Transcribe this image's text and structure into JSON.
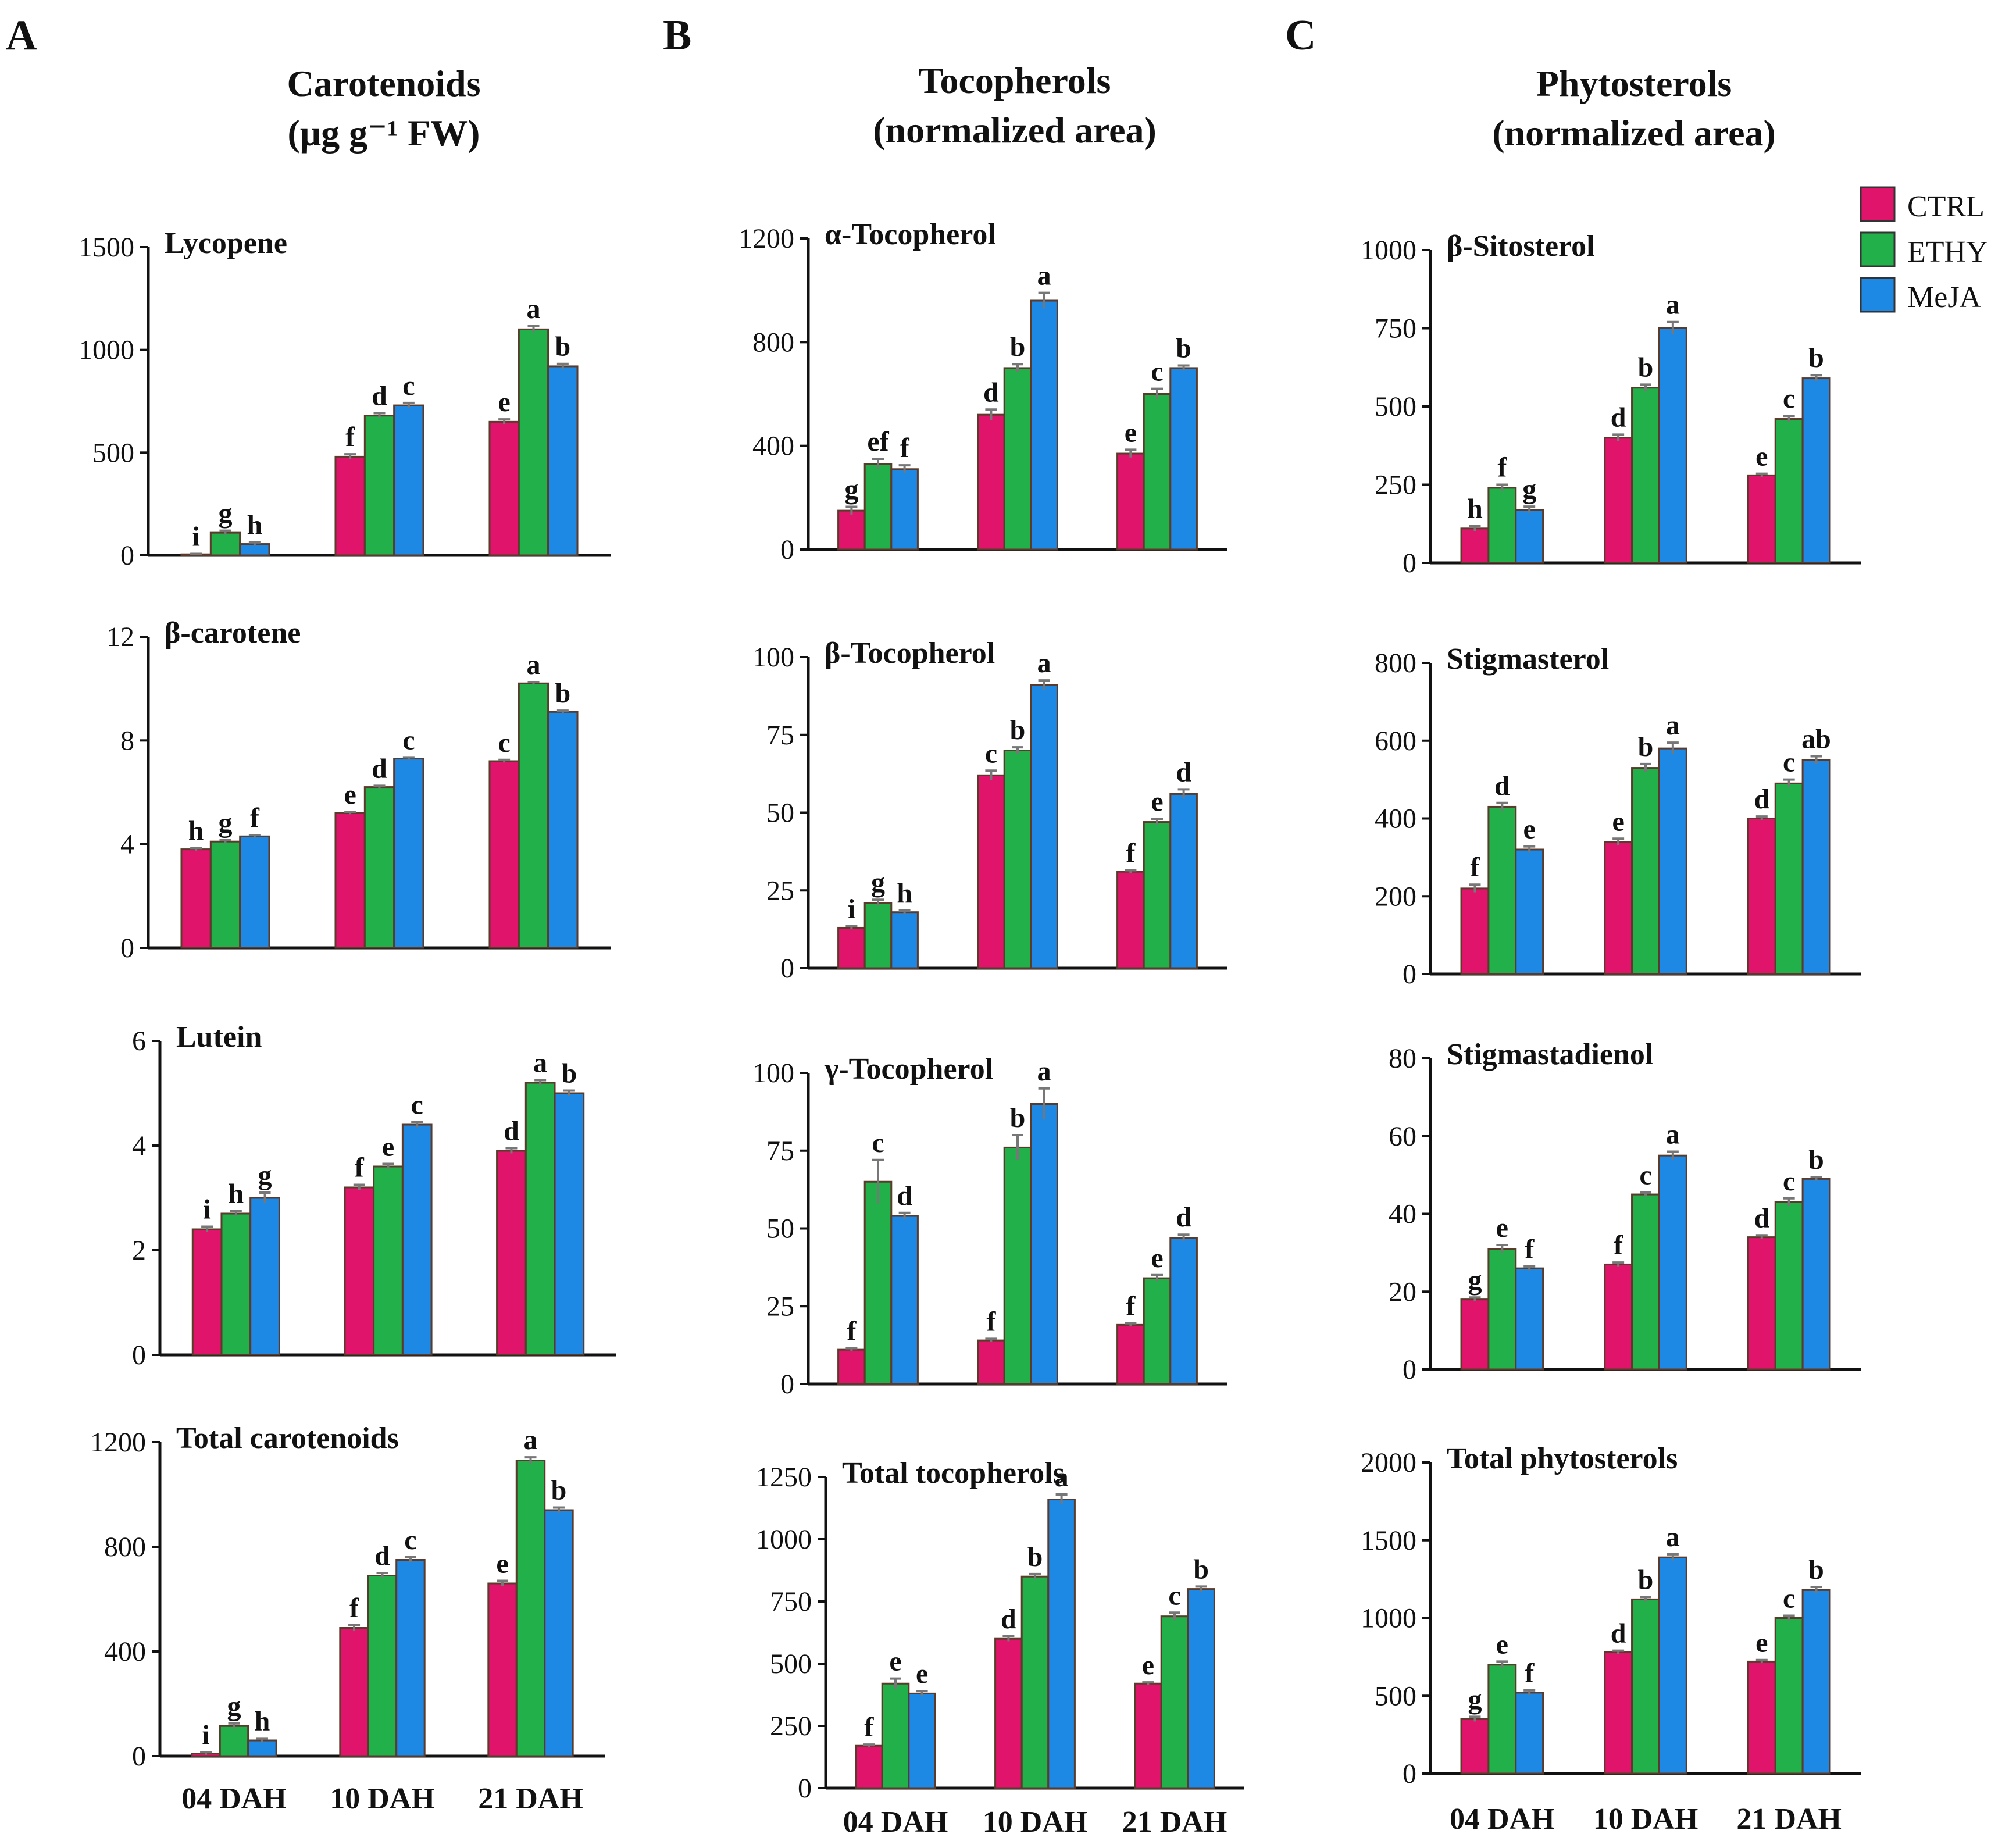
{
  "colors": {
    "CTRL": "#e0146a",
    "ETHY": "#22b04a",
    "MeJA": "#1e88e5"
  },
  "legend": [
    "CTRL",
    "ETHY",
    "MeJA"
  ],
  "categories": [
    "04 DAH",
    "10 DAH",
    "21 DAH"
  ],
  "columns": [
    {
      "letter": "A",
      "title_line1": "Carotenoids",
      "title_line2": "(μg g⁻¹ FW)"
    },
    {
      "letter": "B",
      "title_line1": "Tocopherols",
      "title_line2": "(normalized area)"
    },
    {
      "letter": "C",
      "title_line1": "Phytosterols",
      "title_line2": "(normalized area)"
    }
  ],
  "chart_data": [
    {
      "id": "lycopene",
      "type": "bar",
      "title": "Lycopene",
      "ylim": [
        0,
        1500
      ],
      "yticks": [
        0,
        500,
        1000,
        1500
      ],
      "categories": [
        "04 DAH",
        "10 DAH",
        "21 DAH"
      ],
      "series": [
        {
          "name": "CTRL",
          "values": [
            5,
            480,
            650
          ],
          "errors": [
            2,
            12,
            12
          ],
          "letters": [
            "i",
            "f",
            "e"
          ]
        },
        {
          "name": "ETHY",
          "values": [
            110,
            680,
            1100
          ],
          "errors": [
            10,
            12,
            15
          ],
          "letters": [
            "g",
            "d",
            "a"
          ]
        },
        {
          "name": "MeJA",
          "values": [
            55,
            730,
            920
          ],
          "errors": [
            8,
            12,
            12
          ],
          "letters": [
            "h",
            "c",
            "b"
          ]
        }
      ]
    },
    {
      "id": "beta-carotene",
      "type": "bar",
      "title": "β-carotene",
      "ylim": [
        0,
        12
      ],
      "yticks": [
        0,
        4,
        8,
        12
      ],
      "categories": [
        "04 DAH",
        "10 DAH",
        "21 DAH"
      ],
      "series": [
        {
          "name": "CTRL",
          "values": [
            3.8,
            5.2,
            7.2
          ],
          "errors": [
            0.05,
            0.05,
            0.05
          ],
          "letters": [
            "h",
            "e",
            "c"
          ]
        },
        {
          "name": "ETHY",
          "values": [
            4.1,
            6.2,
            10.2
          ],
          "errors": [
            0.05,
            0.05,
            0.05
          ],
          "letters": [
            "g",
            "d",
            "a"
          ]
        },
        {
          "name": "MeJA",
          "values": [
            4.3,
            7.3,
            9.1
          ],
          "errors": [
            0.05,
            0.05,
            0.05
          ],
          "letters": [
            "f",
            "c",
            "b"
          ]
        }
      ]
    },
    {
      "id": "lutein",
      "type": "bar",
      "title": "Lutein",
      "ylim": [
        0,
        6
      ],
      "yticks": [
        0,
        2,
        4,
        6
      ],
      "categories": [
        "04 DAH",
        "10 DAH",
        "21 DAH"
      ],
      "series": [
        {
          "name": "CTRL",
          "values": [
            2.4,
            3.2,
            3.9
          ],
          "errors": [
            0.05,
            0.05,
            0.05
          ],
          "letters": [
            "i",
            "f",
            "d"
          ]
        },
        {
          "name": "ETHY",
          "values": [
            2.7,
            3.6,
            5.2
          ],
          "errors": [
            0.05,
            0.05,
            0.05
          ],
          "letters": [
            "h",
            "e",
            "a"
          ]
        },
        {
          "name": "MeJA",
          "values": [
            3.0,
            4.4,
            5.0
          ],
          "errors": [
            0.1,
            0.05,
            0.05
          ],
          "letters": [
            "g",
            "c",
            "b"
          ]
        }
      ]
    },
    {
      "id": "total-carotenoids",
      "type": "bar",
      "title": "Total  carotenoids",
      "ylim": [
        0,
        1200
      ],
      "yticks": [
        0,
        400,
        800,
        1200
      ],
      "categories": [
        "04 DAH",
        "10 DAH",
        "21 DAH"
      ],
      "series": [
        {
          "name": "CTRL",
          "values": [
            10,
            490,
            660
          ],
          "errors": [
            5,
            10,
            10
          ],
          "letters": [
            "i",
            "f",
            "e"
          ]
        },
        {
          "name": "ETHY",
          "values": [
            115,
            690,
            1130
          ],
          "errors": [
            10,
            10,
            12
          ],
          "letters": [
            "g",
            "d",
            "a"
          ]
        },
        {
          "name": "MeJA",
          "values": [
            60,
            750,
            940
          ],
          "errors": [
            8,
            10,
            10
          ],
          "letters": [
            "h",
            "c",
            "b"
          ]
        }
      ]
    },
    {
      "id": "alpha-tocopherol",
      "type": "bar",
      "title": "α-Tocopherol",
      "ylim": [
        0,
        1200
      ],
      "yticks": [
        0,
        400,
        800,
        1200
      ],
      "categories": [
        "04 DAH",
        "10 DAH",
        "21 DAH"
      ],
      "series": [
        {
          "name": "CTRL",
          "values": [
            150,
            520,
            370
          ],
          "errors": [
            15,
            20,
            15
          ],
          "letters": [
            "g",
            "d",
            "e"
          ]
        },
        {
          "name": "ETHY",
          "values": [
            330,
            700,
            600
          ],
          "errors": [
            20,
            15,
            20
          ],
          "letters": [
            "ef",
            "b",
            "c"
          ]
        },
        {
          "name": "MeJA",
          "values": [
            310,
            960,
            700
          ],
          "errors": [
            15,
            30,
            10
          ],
          "letters": [
            "f",
            "a",
            "b"
          ]
        }
      ]
    },
    {
      "id": "beta-tocopherol",
      "type": "bar",
      "title": "β-Tocopherol",
      "ylim": [
        0,
        100
      ],
      "yticks": [
        0,
        25,
        50,
        75,
        100
      ],
      "categories": [
        "04 DAH",
        "10 DAH",
        "21 DAH"
      ],
      "series": [
        {
          "name": "CTRL",
          "values": [
            13,
            62,
            31
          ],
          "errors": [
            0.5,
            1.5,
            0.5
          ],
          "letters": [
            "i",
            "c",
            "f"
          ]
        },
        {
          "name": "ETHY",
          "values": [
            21,
            70,
            47
          ],
          "errors": [
            1,
            1,
            1
          ],
          "letters": [
            "g",
            "b",
            "e"
          ]
        },
        {
          "name": "MeJA",
          "values": [
            18,
            91,
            56
          ],
          "errors": [
            0.5,
            1.5,
            1.5
          ],
          "letters": [
            "h",
            "a",
            "d"
          ]
        }
      ]
    },
    {
      "id": "gamma-tocopherol",
      "type": "bar",
      "title": "γ-Tocopherol",
      "ylim": [
        0,
        100
      ],
      "yticks": [
        0,
        25,
        50,
        75,
        100
      ],
      "categories": [
        "04 DAH",
        "10 DAH",
        "21 DAH"
      ],
      "series": [
        {
          "name": "CTRL",
          "values": [
            11,
            14,
            19
          ],
          "errors": [
            0.5,
            0.5,
            0.5
          ],
          "letters": [
            "f",
            "f",
            "f"
          ]
        },
        {
          "name": "ETHY",
          "values": [
            65,
            76,
            34
          ],
          "errors": [
            7,
            4,
            1
          ],
          "letters": [
            "c",
            "b",
            "e"
          ]
        },
        {
          "name": "MeJA",
          "values": [
            54,
            90,
            47
          ],
          "errors": [
            1,
            5,
            1
          ],
          "letters": [
            "d",
            "a",
            "d"
          ]
        }
      ]
    },
    {
      "id": "total-tocopherols",
      "type": "bar",
      "title": "Total  tocopherols",
      "ylim": [
        0,
        1250
      ],
      "yticks": [
        0,
        250,
        500,
        750,
        1000,
        1250
      ],
      "categories": [
        "04 DAH",
        "10 DAH",
        "21 DAH"
      ],
      "series": [
        {
          "name": "CTRL",
          "values": [
            170,
            600,
            420
          ],
          "errors": [
            5,
            10,
            5
          ],
          "letters": [
            "f",
            "d",
            "e"
          ]
        },
        {
          "name": "ETHY",
          "values": [
            420,
            850,
            690
          ],
          "errors": [
            20,
            10,
            15
          ],
          "letters": [
            "e",
            "b",
            "c"
          ]
        },
        {
          "name": "MeJA",
          "values": [
            380,
            1160,
            800
          ],
          "errors": [
            10,
            20,
            10
          ],
          "letters": [
            "e",
            "a",
            "b"
          ]
        }
      ]
    },
    {
      "id": "beta-sitosterol",
      "type": "bar",
      "title": "β-Sitosterol",
      "ylim": [
        0,
        1000
      ],
      "yticks": [
        0,
        250,
        500,
        750,
        1000
      ],
      "categories": [
        "04 DAH",
        "10 DAH",
        "21 DAH"
      ],
      "series": [
        {
          "name": "CTRL",
          "values": [
            110,
            400,
            280
          ],
          "errors": [
            8,
            10,
            5
          ],
          "letters": [
            "h",
            "d",
            "e"
          ]
        },
        {
          "name": "ETHY",
          "values": [
            240,
            560,
            460
          ],
          "errors": [
            10,
            10,
            10
          ],
          "letters": [
            "f",
            "b",
            "c"
          ]
        },
        {
          "name": "MeJA",
          "values": [
            170,
            750,
            590
          ],
          "errors": [
            10,
            20,
            10
          ],
          "letters": [
            "g",
            "a",
            "b"
          ]
        }
      ]
    },
    {
      "id": "stigmasterol",
      "type": "bar",
      "title": "Stigmasterol",
      "ylim": [
        0,
        800
      ],
      "yticks": [
        0,
        200,
        400,
        600,
        800
      ],
      "categories": [
        "04 DAH",
        "10 DAH",
        "21 DAH"
      ],
      "series": [
        {
          "name": "CTRL",
          "values": [
            220,
            340,
            400
          ],
          "errors": [
            10,
            8,
            5
          ],
          "letters": [
            "f",
            "e",
            "d"
          ]
        },
        {
          "name": "ETHY",
          "values": [
            430,
            530,
            490
          ],
          "errors": [
            10,
            10,
            10
          ],
          "letters": [
            "d",
            "b",
            "c"
          ]
        },
        {
          "name": "MeJA",
          "values": [
            320,
            580,
            550
          ],
          "errors": [
            8,
            15,
            10
          ],
          "letters": [
            "e",
            "a",
            "ab"
          ]
        }
      ]
    },
    {
      "id": "stigmastadienol",
      "type": "bar",
      "title": "Stigmastadienol",
      "ylim": [
        0,
        80
      ],
      "yticks": [
        0,
        20,
        40,
        60,
        80
      ],
      "categories": [
        "04 DAH",
        "10 DAH",
        "21 DAH"
      ],
      "series": [
        {
          "name": "CTRL",
          "values": [
            18,
            27,
            34
          ],
          "errors": [
            0.5,
            0.5,
            0.5
          ],
          "letters": [
            "g",
            "f",
            "d"
          ]
        },
        {
          "name": "ETHY",
          "values": [
            31,
            45,
            43
          ],
          "errors": [
            1,
            0.5,
            1
          ],
          "letters": [
            "e",
            "c",
            "c"
          ]
        },
        {
          "name": "MeJA",
          "values": [
            26,
            55,
            49
          ],
          "errors": [
            0.5,
            1,
            0.5
          ],
          "letters": [
            "f",
            "a",
            "b"
          ]
        }
      ]
    },
    {
      "id": "total-phytosterols",
      "type": "bar",
      "title": "Total  phytosterols",
      "ylim": [
        0,
        2000
      ],
      "yticks": [
        0,
        500,
        1000,
        1500,
        2000
      ],
      "categories": [
        "04 DAH",
        "10 DAH",
        "21 DAH"
      ],
      "series": [
        {
          "name": "CTRL",
          "values": [
            350,
            780,
            720
          ],
          "errors": [
            15,
            10,
            10
          ],
          "letters": [
            "g",
            "d",
            "e"
          ]
        },
        {
          "name": "ETHY",
          "values": [
            700,
            1120,
            1000
          ],
          "errors": [
            20,
            15,
            15
          ],
          "letters": [
            "e",
            "b",
            "c"
          ]
        },
        {
          "name": "MeJA",
          "values": [
            520,
            1390,
            1180
          ],
          "errors": [
            15,
            20,
            20
          ],
          "letters": [
            "f",
            "a",
            "b"
          ]
        }
      ]
    }
  ]
}
